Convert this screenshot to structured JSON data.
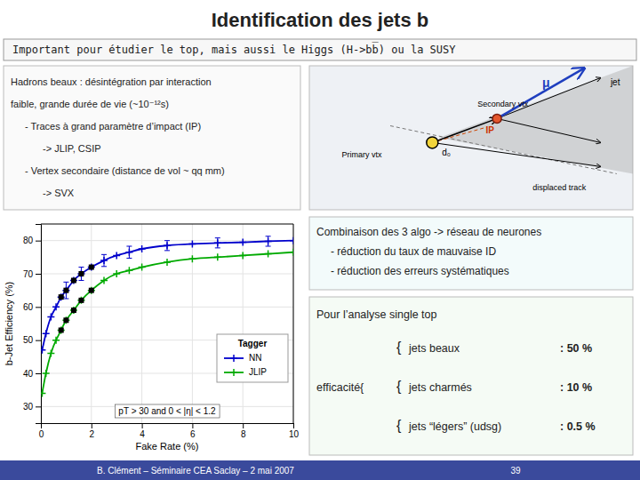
{
  "chart_data": {
    "type": "line",
    "title": "Identification des jets b",
    "subtitle": "Important pour étudier le top, mais aussi le Higgs (H->bb̅) ou la SUSY",
    "x_label": "Fake Rate (%)",
    "y_label": "b-Jet Efficiency (%)",
    "xlim": [
      0,
      10
    ],
    "ylim": [
      25,
      85
    ],
    "xticks": [
      0,
      2,
      4,
      6,
      8,
      10
    ],
    "yticks": [
      30,
      40,
      50,
      60,
      70,
      80
    ],
    "grid": true,
    "legend": "lower right",
    "legend_title": "Tagger",
    "series": [
      {
        "name": "NN",
        "color": "#0000cc",
        "marker": "plus",
        "line_style": "solid",
        "x": [
          0.05,
          0.2,
          0.4,
          0.6,
          0.8,
          1.0,
          1.3,
          1.6,
          2.0,
          2.5,
          3.0,
          3.5,
          4.0,
          5.0,
          6.0,
          7.0,
          8.0,
          9.0,
          10.0
        ],
        "values": [
          47,
          52,
          57,
          60,
          63,
          65,
          68,
          70,
          72,
          74,
          75.5,
          76.5,
          77.5,
          78.5,
          79,
          79.3,
          79.5,
          79.8,
          80
        ],
        "errors": [
          null,
          null,
          null,
          null,
          null,
          2.5,
          null,
          2.0,
          null,
          1.8,
          null,
          1.8,
          null,
          1.5,
          null,
          1.5,
          null,
          1.5,
          null
        ]
      },
      {
        "name": "JLIP",
        "color": "#00aa00",
        "marker": "plus",
        "line_style": "solid",
        "x": [
          0.05,
          0.2,
          0.4,
          0.6,
          0.8,
          1.0,
          1.3,
          1.6,
          2.0,
          2.5,
          3.0,
          3.5,
          4.0,
          5.0,
          6.0,
          7.0,
          8.0,
          9.0,
          10.0
        ],
        "values": [
          34,
          40,
          46,
          50,
          53,
          56,
          59,
          62,
          65,
          68,
          70,
          71,
          72,
          73.5,
          74.5,
          75,
          75.5,
          76,
          76.5
        ]
      },
      {
        "type": "scatter",
        "color": "#000000",
        "marker": "square",
        "x": [
          0.8,
          1.0,
          1.3,
          1.6,
          2.0
        ],
        "values": [
          63,
          65,
          68,
          70,
          72
        ]
      },
      {
        "type": "scatter",
        "color": "#000000",
        "marker": "square",
        "x": [
          0.8,
          1.0,
          1.3,
          1.6,
          2.0
        ],
        "values": [
          53,
          56,
          59,
          62,
          65
        ]
      }
    ],
    "annotations": [
      [
        "pT > 30 and 0 < |η| < 1.2"
      ],
      [
        "Hadrons beaux : désintégration par interaction",
        "faible, grande durée de vie (~10⁻¹²s)",
        "- Traces à grand paramètre d’impact (IP)",
        "-> JLIP, CSIP",
        "- Vertex secondaire (distance de vol ~ qq mm)",
        "-> SVX"
      ],
      [
        "μ",
        "IP",
        "d₀",
        "displaced track",
        "jet",
        "Secondary vtx",
        "Primary vtx"
      ],
      [
        "Combinaison des 3 algo -> réseau de neurones",
        "- réduction du taux de mauvaise ID",
        "- réduction des erreurs systématiques"
      ],
      [
        "Pour l’analyse single top",
        "efficacité{",
        "{",
        "jets beaux",
        ": 50 %",
        "{",
        "jets charmés",
        ": 10 %",
        "{",
        "jets “légers” (udsg)",
        ": 0.5 %"
      ],
      [
        "B. Clément – Séminaire CEA Saclay – 2 mai 2007",
        "39"
      ]
    ]
  }
}
